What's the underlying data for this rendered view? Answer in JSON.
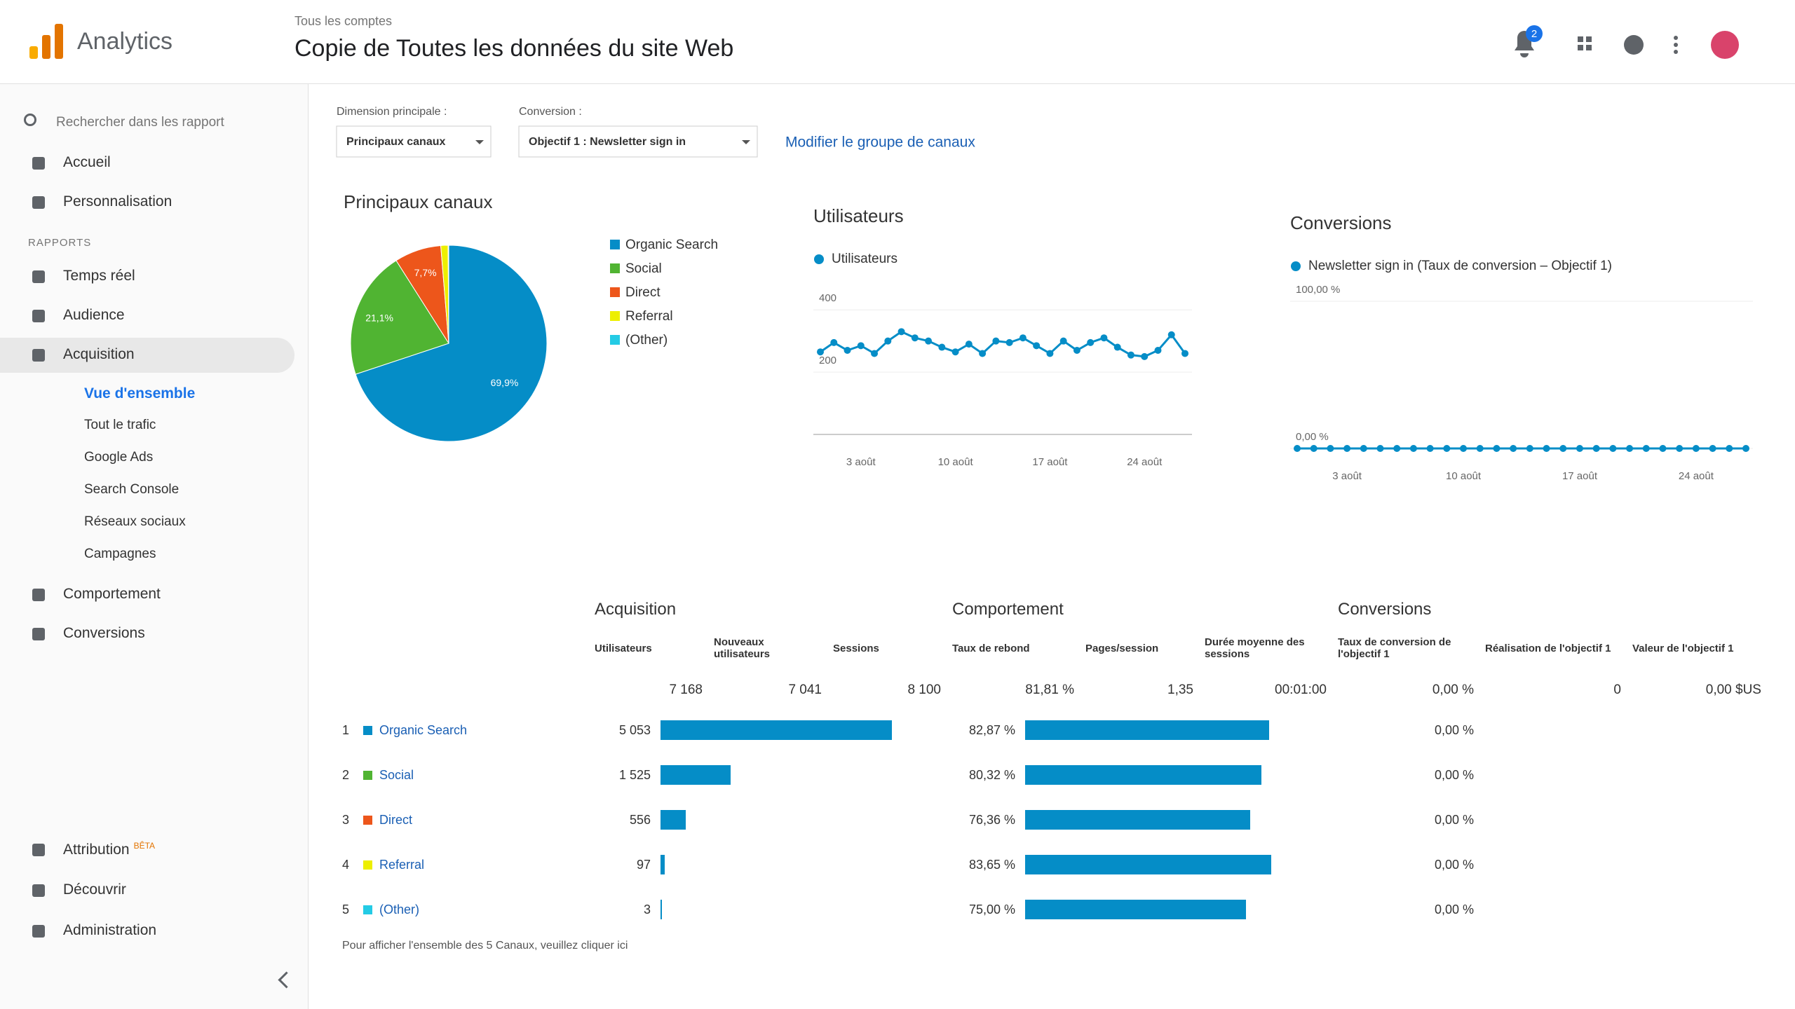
{
  "header": {
    "product": "Analytics",
    "breadcrumb": "Tous les comptes",
    "title": "Copie de Toutes les données du site Web",
    "notifications": "2"
  },
  "sidebar": {
    "search": "Rechercher dans les rapport",
    "items": [
      "Accueil",
      "Personnalisation"
    ],
    "section": "RAPPORTS",
    "reports": [
      "Temps réel",
      "Audience",
      "Acquisition"
    ],
    "acquisition_items": [
      "Vue d'ensemble",
      "Tout le trafic",
      "Google Ads",
      "Search Console",
      "Réseaux sociaux",
      "Campagnes"
    ],
    "more_reports": [
      "Comportement",
      "Conversions"
    ],
    "footer_items": [
      "Attribution",
      "Découvrir",
      "Administration"
    ],
    "beta": "BÊTA"
  },
  "controls": {
    "dimension_label": "Dimension principale :",
    "dimension": "Principaux canaux",
    "conversion_label": "Conversion :",
    "conversion": "Objectif 1 : Newsletter sign in",
    "link": "Modifier le groupe de canaux"
  },
  "chart_data": [
    {
      "type": "pie",
      "title": "Principaux canaux",
      "categories": [
        "Organic Search",
        "Social",
        "Direct",
        "Referral",
        "(Other)"
      ],
      "values": [
        69.9,
        21.1,
        7.7,
        1.2,
        0.1
      ],
      "value_labels": [
        "69,9%",
        "21,1%",
        "7,7%",
        null,
        null
      ],
      "colors": [
        "#058dc7",
        "#50b432",
        "#ed561b",
        "#edef00",
        "#24cbe5"
      ]
    },
    {
      "type": "line",
      "title": "Utilisateurs",
      "categories": [
        null,
        null,
        null,
        "3 août",
        null,
        null,
        null,
        null,
        null,
        null,
        "10 août",
        null,
        null,
        null,
        null,
        null,
        null,
        "17 août",
        null,
        null,
        null,
        null,
        null,
        null,
        "24 août",
        null,
        null,
        null
      ],
      "series": [
        {
          "name": "Utilisateurs",
          "color": "#058dc7",
          "values": [
            265,
            295,
            270,
            285,
            260,
            300,
            330,
            310,
            300,
            280,
            265,
            290,
            260,
            300,
            295,
            310,
            285,
            260,
            300,
            270,
            295,
            310,
            280,
            255,
            250,
            270,
            320,
            260
          ]
        }
      ],
      "ylim": [
        0,
        450
      ],
      "yticks": [
        200,
        400
      ]
    },
    {
      "type": "line",
      "title": "Conversions",
      "categories": [
        null,
        null,
        null,
        "3 août",
        null,
        null,
        null,
        null,
        null,
        null,
        "10 août",
        null,
        null,
        null,
        null,
        null,
        null,
        "17 août",
        null,
        null,
        null,
        null,
        null,
        null,
        "24 août",
        null,
        null,
        null
      ],
      "series": [
        {
          "name": "Newsletter sign in (Taux de conversion – Objectif 1)",
          "color": "#058dc7",
          "values": [
            0,
            0,
            0,
            0,
            0,
            0,
            0,
            0,
            0,
            0,
            0,
            0,
            0,
            0,
            0,
            0,
            0,
            0,
            0,
            0,
            0,
            0,
            0,
            0,
            0,
            0,
            0,
            0
          ]
        }
      ],
      "ylim": [
        0,
        100
      ],
      "yticks": [
        {
          "value": 0,
          "label": "0,00 %"
        },
        {
          "value": 100,
          "label": "100,00 %"
        }
      ]
    }
  ],
  "table": {
    "groups": [
      "Acquisition",
      "Comportement",
      "Conversions"
    ],
    "columns": [
      "Utilisateurs",
      "Nouveaux utilisateurs",
      "Sessions",
      "Taux de rebond",
      "Pages/session",
      "Durée moyenne des sessions",
      "Taux de conversion de l'objectif 1",
      "Réalisation de l'objectif 1",
      "Valeur de l'objectif 1"
    ],
    "totals": [
      "7 168",
      "7 041",
      "8 100",
      "81,81 %",
      "1,35",
      "00:01:00",
      "0,00 %",
      "0",
      "0,00 $US"
    ],
    "rows": [
      {
        "rank": "1",
        "channel": "Organic Search",
        "color": "#058dc7",
        "users": 5053,
        "users_label": "5 053",
        "bounce": 82.87,
        "bounce_label": "82,87 %",
        "conversion": "0,00 %"
      },
      {
        "rank": "2",
        "channel": "Social",
        "color": "#50b432",
        "users": 1525,
        "users_label": "1 525",
        "bounce": 80.32,
        "bounce_label": "80,32 %",
        "conversion": "0,00 %"
      },
      {
        "rank": "3",
        "channel": "Direct",
        "color": "#ed561b",
        "users": 556,
        "users_label": "556",
        "bounce": 76.36,
        "bounce_label": "76,36 %",
        "conversion": "0,00 %"
      },
      {
        "rank": "4",
        "channel": "Referral",
        "color": "#edef00",
        "users": 97,
        "users_label": "97",
        "bounce": 83.65,
        "bounce_label": "83,65 %",
        "conversion": "0,00 %"
      },
      {
        "rank": "5",
        "channel": "(Other)",
        "color": "#24cbe5",
        "users": 3,
        "users_label": "3",
        "bounce": 75,
        "bounce_label": "75,00 %",
        "conversion": "0,00 %"
      }
    ],
    "footer": "Pour afficher l'ensemble des 5 Canaux, veuillez cliquer ici"
  }
}
